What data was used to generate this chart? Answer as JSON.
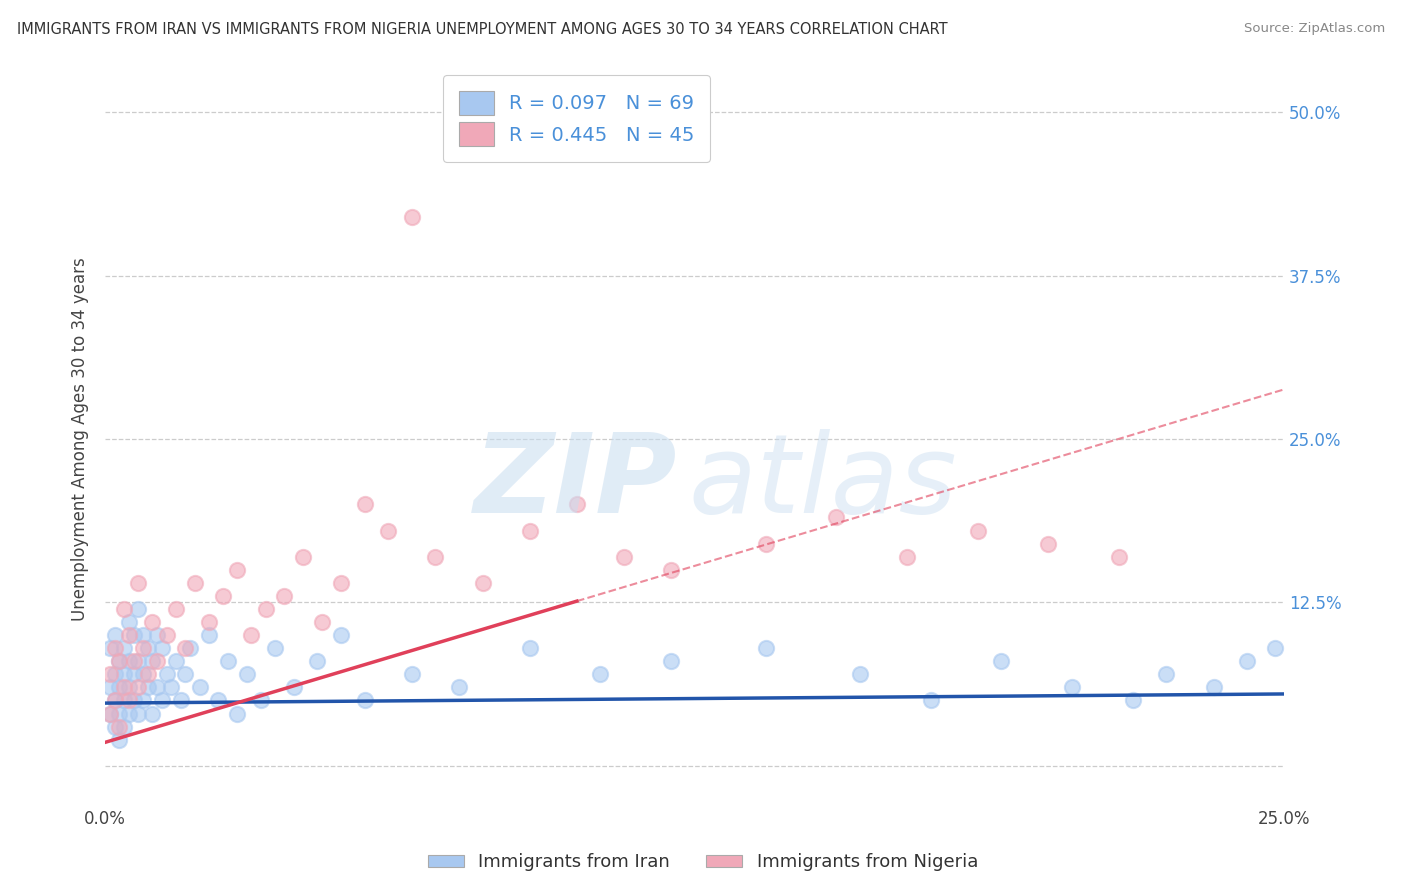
{
  "title": "IMMIGRANTS FROM IRAN VS IMMIGRANTS FROM NIGERIA UNEMPLOYMENT AMONG AGES 30 TO 34 YEARS CORRELATION CHART",
  "source": "Source: ZipAtlas.com",
  "ylabel": "Unemployment Among Ages 30 to 34 years",
  "xlim": [
    0.0,
    0.25
  ],
  "ylim": [
    -0.03,
    0.53
  ],
  "x_ticks": [
    0.0,
    0.05,
    0.1,
    0.15,
    0.2,
    0.25
  ],
  "x_tick_labels": [
    "0.0%",
    "",
    "",
    "",
    "",
    "25.0%"
  ],
  "y_ticks": [
    0.0,
    0.125,
    0.25,
    0.375,
    0.5
  ],
  "y_tick_labels_left": [
    "",
    "",
    "",
    "",
    ""
  ],
  "y_tick_labels_right": [
    "",
    "12.5%",
    "25.0%",
    "37.5%",
    "50.0%"
  ],
  "iran_color": "#a8c8f0",
  "nigeria_color": "#f0a8b8",
  "iran_line_color": "#2255aa",
  "nigeria_line_color": "#e0405a",
  "nigeria_line_dashed_color": "#e0a0b0",
  "iran_R": 0.097,
  "iran_N": 69,
  "nigeria_R": 0.445,
  "nigeria_N": 45,
  "legend_iran": "Immigrants from Iran",
  "legend_nigeria": "Immigrants from Nigeria",
  "background_color": "#ffffff",
  "grid_color": "#cccccc",
  "iran_intercept": 0.048,
  "iran_slope": 0.028,
  "nigeria_intercept": 0.018,
  "nigeria_slope": 1.08,
  "iran_scatter_x": [
    0.001,
    0.001,
    0.001,
    0.002,
    0.002,
    0.002,
    0.002,
    0.003,
    0.003,
    0.003,
    0.003,
    0.004,
    0.004,
    0.004,
    0.004,
    0.005,
    0.005,
    0.005,
    0.005,
    0.006,
    0.006,
    0.006,
    0.007,
    0.007,
    0.007,
    0.008,
    0.008,
    0.008,
    0.009,
    0.009,
    0.01,
    0.01,
    0.011,
    0.011,
    0.012,
    0.012,
    0.013,
    0.014,
    0.015,
    0.016,
    0.017,
    0.018,
    0.02,
    0.022,
    0.024,
    0.026,
    0.028,
    0.03,
    0.033,
    0.036,
    0.04,
    0.045,
    0.05,
    0.055,
    0.065,
    0.075,
    0.09,
    0.105,
    0.12,
    0.14,
    0.16,
    0.175,
    0.19,
    0.205,
    0.218,
    0.225,
    0.235,
    0.242,
    0.248
  ],
  "iran_scatter_y": [
    0.04,
    0.06,
    0.09,
    0.03,
    0.05,
    0.07,
    0.1,
    0.02,
    0.06,
    0.08,
    0.04,
    0.05,
    0.07,
    0.09,
    0.03,
    0.04,
    0.06,
    0.08,
    0.11,
    0.05,
    0.07,
    0.1,
    0.04,
    0.08,
    0.12,
    0.05,
    0.07,
    0.1,
    0.06,
    0.09,
    0.04,
    0.08,
    0.06,
    0.1,
    0.05,
    0.09,
    0.07,
    0.06,
    0.08,
    0.05,
    0.07,
    0.09,
    0.06,
    0.1,
    0.05,
    0.08,
    0.04,
    0.07,
    0.05,
    0.09,
    0.06,
    0.08,
    0.1,
    0.05,
    0.07,
    0.06,
    0.09,
    0.07,
    0.08,
    0.09,
    0.07,
    0.05,
    0.08,
    0.06,
    0.05,
    0.07,
    0.06,
    0.08,
    0.09
  ],
  "nigeria_scatter_x": [
    0.001,
    0.001,
    0.002,
    0.002,
    0.003,
    0.003,
    0.004,
    0.004,
    0.005,
    0.005,
    0.006,
    0.007,
    0.007,
    0.008,
    0.009,
    0.01,
    0.011,
    0.013,
    0.015,
    0.017,
    0.019,
    0.022,
    0.025,
    0.028,
    0.031,
    0.034,
    0.038,
    0.042,
    0.046,
    0.05,
    0.055,
    0.06,
    0.065,
    0.07,
    0.08,
    0.09,
    0.1,
    0.11,
    0.12,
    0.14,
    0.155,
    0.17,
    0.185,
    0.2,
    0.215
  ],
  "nigeria_scatter_y": [
    0.04,
    0.07,
    0.05,
    0.09,
    0.03,
    0.08,
    0.06,
    0.12,
    0.05,
    0.1,
    0.08,
    0.06,
    0.14,
    0.09,
    0.07,
    0.11,
    0.08,
    0.1,
    0.12,
    0.09,
    0.14,
    0.11,
    0.13,
    0.15,
    0.1,
    0.12,
    0.13,
    0.16,
    0.11,
    0.14,
    0.2,
    0.18,
    0.42,
    0.16,
    0.14,
    0.18,
    0.2,
    0.16,
    0.15,
    0.17,
    0.19,
    0.16,
    0.18,
    0.17,
    0.16
  ]
}
